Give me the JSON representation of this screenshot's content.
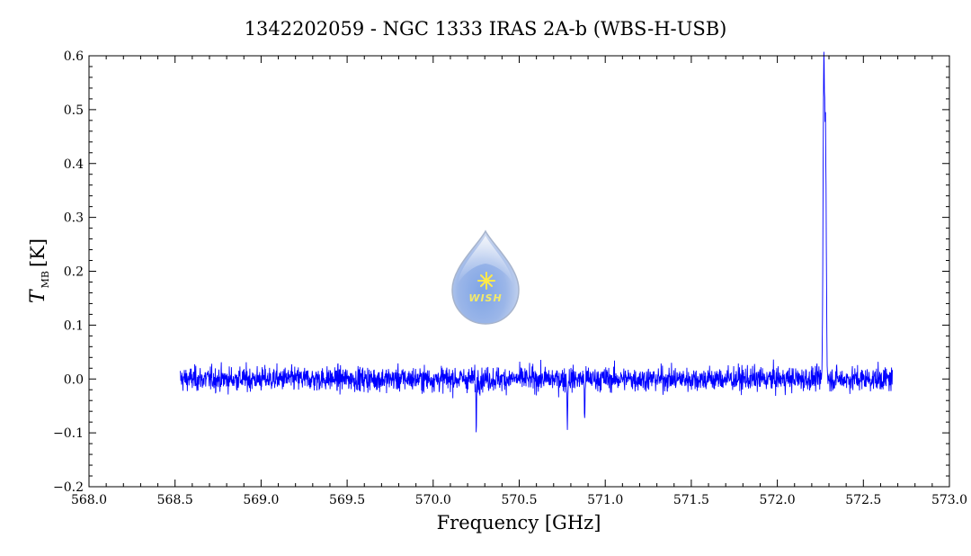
{
  "chart_data": {
    "type": "line",
    "title": "1342202059 - NGC 1333 IRAS 2A-b (WBS-H-USB)",
    "xlabel": "Frequency [GHz]",
    "ylabel": {
      "symbol": "T",
      "subscript": "MB",
      "unit": "[K]"
    },
    "xlim": [
      568.0,
      573.0
    ],
    "ylim": [
      -0.2,
      0.6
    ],
    "xticks": [
      "568.0",
      "568.5",
      "569.0",
      "569.5",
      "570.0",
      "570.5",
      "571.0",
      "571.5",
      "572.0",
      "572.5",
      "573.0"
    ],
    "yticks": [
      "-0.2",
      "-0.1",
      "0.0",
      "0.1",
      "0.2",
      "0.3",
      "0.4",
      "0.5",
      "0.6"
    ],
    "grid": false,
    "series": [
      {
        "color": "#0000ff",
        "x_range": [
          568.53,
          572.67
        ],
        "baseline": 0.0,
        "noise_rms": 0.015,
        "features": [
          {
            "x": 570.25,
            "y": -0.1
          },
          {
            "x": 570.78,
            "y": -0.1
          },
          {
            "x": 570.88,
            "y": -0.08
          },
          {
            "x": 572.27,
            "y": 0.575
          },
          {
            "x": 572.28,
            "y": 0.45
          }
        ]
      }
    ],
    "logo": {
      "text": "WISH"
    }
  }
}
